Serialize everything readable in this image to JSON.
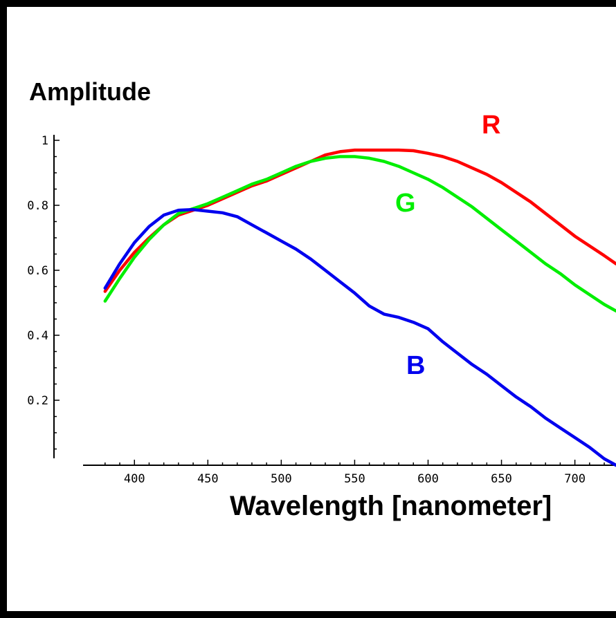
{
  "chart_data": {
    "type": "line",
    "title": "",
    "ylabel": "Amplitude",
    "xlabel": "Wavelength [nanometer]",
    "xlim": [
      365,
      728
    ],
    "ylim": [
      0,
      1
    ],
    "x_ticks": [
      400,
      450,
      500,
      550,
      600,
      650,
      700
    ],
    "y_ticks": [
      0.2,
      0.4,
      0.6,
      0.8,
      1
    ],
    "y_tick_labels": [
      "0.2",
      "0.4",
      "0.6",
      "0.8",
      "1"
    ],
    "grid": false,
    "series": [
      {
        "name": "R",
        "color": "#ff0000",
        "x": [
          380,
          390,
          400,
          410,
          420,
          430,
          440,
          450,
          460,
          470,
          480,
          490,
          500,
          510,
          520,
          530,
          540,
          550,
          560,
          570,
          580,
          590,
          600,
          610,
          620,
          630,
          640,
          650,
          660,
          670,
          680,
          690,
          700,
          710,
          720,
          728
        ],
        "y": [
          0.535,
          0.6,
          0.655,
          0.7,
          0.74,
          0.77,
          0.785,
          0.8,
          0.82,
          0.84,
          0.86,
          0.875,
          0.895,
          0.915,
          0.935,
          0.955,
          0.965,
          0.97,
          0.97,
          0.97,
          0.97,
          0.968,
          0.96,
          0.95,
          0.935,
          0.915,
          0.895,
          0.87,
          0.84,
          0.81,
          0.775,
          0.74,
          0.705,
          0.675,
          0.645,
          0.62
        ]
      },
      {
        "name": "G",
        "color": "#00ee00",
        "x": [
          380,
          390,
          400,
          410,
          420,
          430,
          440,
          450,
          460,
          470,
          480,
          490,
          500,
          510,
          520,
          530,
          540,
          550,
          560,
          570,
          580,
          590,
          600,
          610,
          620,
          630,
          640,
          650,
          660,
          670,
          680,
          690,
          700,
          710,
          720,
          728
        ],
        "y": [
          0.505,
          0.575,
          0.64,
          0.695,
          0.74,
          0.775,
          0.79,
          0.805,
          0.825,
          0.845,
          0.865,
          0.88,
          0.9,
          0.92,
          0.935,
          0.945,
          0.95,
          0.95,
          0.945,
          0.935,
          0.92,
          0.9,
          0.88,
          0.855,
          0.825,
          0.795,
          0.76,
          0.725,
          0.69,
          0.655,
          0.62,
          0.59,
          0.555,
          0.525,
          0.495,
          0.475
        ]
      },
      {
        "name": "B",
        "color": "#0000ee",
        "x": [
          380,
          390,
          400,
          410,
          420,
          430,
          440,
          450,
          460,
          470,
          480,
          490,
          500,
          510,
          520,
          530,
          540,
          550,
          560,
          570,
          580,
          590,
          600,
          610,
          620,
          630,
          640,
          650,
          660,
          670,
          680,
          690,
          700,
          710,
          720,
          728
        ],
        "y": [
          0.545,
          0.62,
          0.685,
          0.735,
          0.77,
          0.785,
          0.787,
          0.782,
          0.777,
          0.765,
          0.74,
          0.715,
          0.69,
          0.665,
          0.635,
          0.6,
          0.565,
          0.53,
          0.49,
          0.465,
          0.455,
          0.44,
          0.42,
          0.38,
          0.345,
          0.31,
          0.28,
          0.245,
          0.21,
          0.18,
          0.145,
          0.115,
          0.085,
          0.055,
          0.02,
          0.0
        ]
      }
    ]
  }
}
